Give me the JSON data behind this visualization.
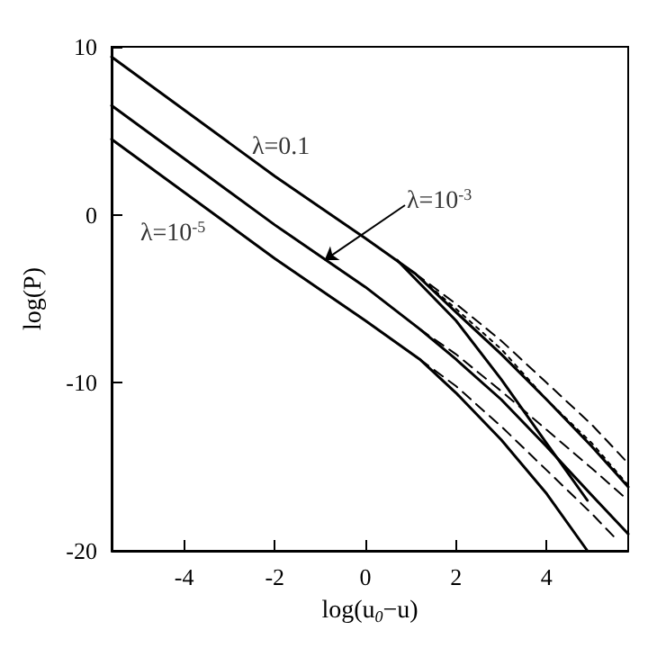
{
  "chart_data": {
    "type": "line",
    "xlabel": "log(u$_{0}$−u)",
    "ylabel": "log(P)",
    "xlim": [
      -5.6,
      5.8
    ],
    "ylim": [
      -20,
      10
    ],
    "xticks": [
      -4,
      -2,
      0,
      2,
      4
    ],
    "yticks": [
      -20,
      -10,
      0,
      10
    ],
    "grid": false,
    "marker": "none",
    "series": [
      {
        "color": "#000000",
        "line_style": "solid",
        "x": [
          -5.6,
          -2,
          0,
          1.1,
          2,
          3,
          4,
          5,
          5.8
        ],
        "values": [
          9.4,
          2.3,
          -1.4,
          -3.5,
          -5.8,
          -8.3,
          -11,
          -13.8,
          -16.2
        ]
      },
      {
        "color": "#000000",
        "line_style": "dashed",
        "x": [
          1.1,
          2,
          3,
          4,
          5,
          5.8
        ],
        "values": [
          -3.5,
          -5.3,
          -7.5,
          -10,
          -12.5,
          -14.8
        ]
      },
      {
        "color": "#000000",
        "line_style": "dotted",
        "x": [
          1.1,
          2,
          3,
          4,
          5,
          5.8
        ],
        "values": [
          -3.5,
          -5.6,
          -8,
          -11,
          -13.6,
          -16.1
        ]
      },
      {
        "color": "#000000",
        "line_style": "solid",
        "x": [
          0.7,
          2,
          3,
          4,
          4.9
        ],
        "values": [
          -2.7,
          -6.3,
          -9.8,
          -13.6,
          -17
        ]
      },
      {
        "color": "#000000",
        "line_style": "solid",
        "x": [
          -5.6,
          -2,
          0,
          1.2,
          2,
          3,
          4,
          5,
          5.8
        ],
        "values": [
          6.5,
          -0.6,
          -4.3,
          -6.8,
          -8.6,
          -11,
          -13.8,
          -16.7,
          -19
        ]
      },
      {
        "color": "#000000",
        "line_style": "dashed",
        "x": [
          1.2,
          2,
          3,
          4,
          5,
          5.8
        ],
        "values": [
          -6.8,
          -8.3,
          -10.5,
          -12.8,
          -15.1,
          -17
        ]
      },
      {
        "color": "#000000",
        "line_style": "solid",
        "x": [
          -5.6,
          -2,
          0,
          1.2,
          2,
          3,
          4,
          4.9
        ],
        "values": [
          4.5,
          -2.6,
          -6.3,
          -8.6,
          -10.6,
          -13.4,
          -16.6,
          -20
        ]
      },
      {
        "color": "#000000",
        "line_style": "dashed",
        "x": [
          1.2,
          2,
          3,
          4,
          5,
          5.5
        ],
        "values": [
          -8.6,
          -10.2,
          -12.6,
          -15.2,
          -17.8,
          -19.2
        ]
      }
    ],
    "annotations": [
      "λ=0.1",
      {
        "text": "λ=10$^{-3}$",
        "x": -0.9,
        "y": -2.7
      },
      "λ=10$^{-5}$"
    ]
  }
}
